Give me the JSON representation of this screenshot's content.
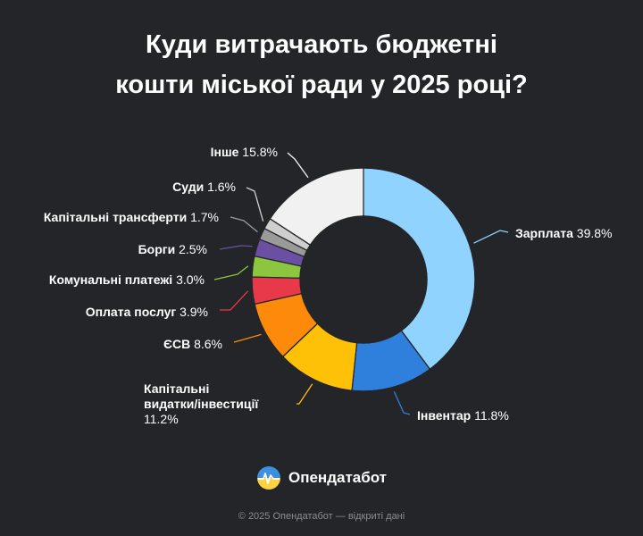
{
  "title_line1": "Куди витрачають бюджетні",
  "title_line2": "кошти міської ради у 2025 році?",
  "chart_data": {
    "type": "pie",
    "title": "Куди витрачають бюджетні кошти міської ради у 2025 році?",
    "slices": [
      {
        "label": "Зарплата",
        "value": 39.8,
        "display": "39.8%",
        "color": "#8fd3fe"
      },
      {
        "label": "Інвентар",
        "value": 11.8,
        "display": "11.8%",
        "color": "#2f80dc"
      },
      {
        "label": "Капітальні видатки/інвестиції",
        "label_lines": [
          "Капітальні",
          "видатки/інвестиції"
        ],
        "value": 11.2,
        "display": "11.2%",
        "color": "#ffc107"
      },
      {
        "label": "ЄСВ",
        "value": 8.6,
        "display": "8.6%",
        "color": "#fd8a0a"
      },
      {
        "label": "Оплата послуг",
        "value": 3.9,
        "display": "3.9%",
        "color": "#e8394a"
      },
      {
        "label": "Комунальні платежі",
        "value": 3.0,
        "display": "3.0%",
        "color": "#8cc63f"
      },
      {
        "label": "Борги",
        "value": 2.5,
        "display": "2.5%",
        "color": "#6a4fa3"
      },
      {
        "label": "Капітальні трансферти",
        "value": 1.7,
        "display": "1.7%",
        "color": "#9a9a9a"
      },
      {
        "label": "Суди",
        "value": 1.6,
        "display": "1.6%",
        "color": "#cfcfcf"
      },
      {
        "label": "Інше",
        "value": 15.8,
        "display": "15.8%",
        "color": "#f1f1f1"
      }
    ]
  },
  "brand": {
    "name": "Опендатабот",
    "icon": "opendatabot-logo-icon"
  },
  "footer": "© 2025 Опендатабот — відкриті дані"
}
